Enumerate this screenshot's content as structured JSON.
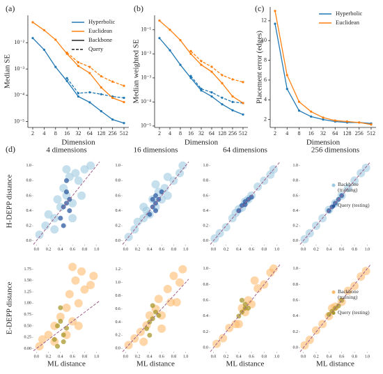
{
  "chart_data": [
    {
      "type": "line",
      "label": "(a)",
      "xlabel": "Dimension",
      "ylabel": "Median SE",
      "categories": [
        "2",
        "4",
        "8",
        "16",
        "32",
        "64",
        "128",
        "256",
        "512"
      ],
      "ylog": true,
      "ylim": [
        6e-06,
        0.11
      ],
      "yticks": [
        {
          "value": 1e-05,
          "label": "10⁻⁵"
        },
        {
          "value": 0.0001,
          "label": "10⁻⁴"
        },
        {
          "value": 0.001,
          "label": "10⁻³"
        },
        {
          "value": 0.01,
          "label": "10⁻²"
        }
      ],
      "legend": "upper right",
      "series": [
        {
          "name": "Hyperbolic",
          "color": "#1f77b4",
          "values": [
            0.015,
            0.0054,
            0.0012,
            0.00035,
            9e-05,
            5.4e-05,
            2.5e-05,
            1.2e-05,
            8.8e-06
          ],
          "query_values": [
            null,
            null,
            null,
            0.00045,
            0.00012,
            0.00013,
            0.00011,
            9e-05,
            8e-05
          ]
        },
        {
          "name": "Euclidean",
          "color": "#ff7f0e",
          "values": [
            0.06,
            0.03,
            0.013,
            0.0038,
            0.0013,
            0.0007,
            0.0002,
            8e-05,
            5.5e-05
          ],
          "query_values": [
            null,
            null,
            null,
            0.0042,
            0.0018,
            0.0012,
            0.00053,
            0.00033,
            0.00023
          ]
        }
      ],
      "line_styles": [
        {
          "name": "Backbone",
          "dashed": false
        },
        {
          "name": "Query",
          "dashed": true
        }
      ]
    },
    {
      "type": "line",
      "label": "(b)",
      "xlabel": "Dimension",
      "ylabel": "Median weighted SE",
      "categories": [
        "2",
        "4",
        "8",
        "16",
        "32",
        "64",
        "128",
        "256",
        "512"
      ],
      "ylog": true,
      "ylim": [
        8.7e-06,
        0.4
      ],
      "yticks": [
        {
          "value": 1e-05,
          "label": "10⁻⁵"
        },
        {
          "value": 0.0001,
          "label": "10⁻⁴"
        },
        {
          "value": 0.001,
          "label": "10⁻³"
        },
        {
          "value": 0.01,
          "label": "10⁻²"
        },
        {
          "value": 0.1,
          "label": "10⁻¹"
        }
      ],
      "series": [
        {
          "color": "#1f77b4",
          "values": [
            0.045,
            0.014,
            0.0035,
            0.001,
            0.0003,
            0.00017,
            8e-05,
            4.5e-05,
            3e-05
          ],
          "query_values": [
            null,
            null,
            null,
            0.0012,
            0.00035,
            0.00025,
            0.00015,
            0.0001,
            9e-05
          ]
        },
        {
          "color": "#ff7f0e",
          "values": [
            0.24,
            0.1,
            0.037,
            0.01,
            0.0035,
            0.0018,
            0.0006,
            0.00017,
            9e-05
          ],
          "query_values": [
            null,
            null,
            null,
            0.013,
            0.005,
            0.0029,
            0.0013,
            0.00087,
            0.00067
          ]
        }
      ]
    },
    {
      "type": "line",
      "label": "(c)",
      "xlabel": "Dimension",
      "ylabel": "Placement error (edges)",
      "categories": [
        "2",
        "4",
        "8",
        "16",
        "32",
        "64",
        "128",
        "256",
        "512"
      ],
      "ylog": false,
      "ylim": [
        1.2,
        13.4
      ],
      "yticks": [
        2,
        4,
        6,
        8,
        10,
        12
      ],
      "legend": "upper right",
      "series": [
        {
          "name": "Hyperbolic",
          "color": "#1f77b4",
          "values": [
            11.7,
            5.1,
            2.9,
            2.3,
            2.0,
            1.8,
            1.7,
            1.7,
            1.6
          ]
        },
        {
          "name": "Euclidean",
          "color": "#ff7f0e",
          "values": [
            13,
            6.5,
            3.8,
            2.8,
            2.2,
            1.9,
            1.8,
            1.7,
            1.5
          ]
        }
      ]
    },
    {
      "type": "scatter",
      "label": "(d)",
      "title": "4 dimensions",
      "ylabel": "H-DEPP distance",
      "xlim": [
        -0.05,
        1.05
      ],
      "ylim": [
        -0.05,
        1.1
      ],
      "xticks": [
        {
          "value": 0,
          "label": "0.0"
        },
        0.2,
        0.4,
        0.6,
        0.8,
        {
          "value": 1,
          "label": "1.0"
        }
      ],
      "yticks": [
        {
          "value": 0,
          "label": "0.0"
        },
        0.2,
        0.4,
        0.6,
        0.8,
        {
          "value": 1,
          "label": "1.0"
        }
      ],
      "series": [
        {
          "color": "#9ecae1",
          "x": [
            0.05,
            0.15,
            0.2,
            0.3,
            0.35,
            0.4,
            0.45,
            0.5,
            0.55,
            0.6,
            0.65,
            0.7,
            0.8,
            0.9,
            0.3,
            0.6,
            0.75,
            0.5
          ],
          "y": [
            0.08,
            0.2,
            0.35,
            0.3,
            0.55,
            0.45,
            0.7,
            0.6,
            0.85,
            0.5,
            0.9,
            0.8,
            0.95,
            1.0,
            0.15,
            0.3,
            0.6,
            0.95
          ]
        },
        {
          "color": "#2c5aa0",
          "x": [
            0.4,
            0.45,
            0.5,
            0.5,
            0.55,
            0.45,
            0.5,
            0.55
          ],
          "y": [
            0.3,
            0.45,
            0.5,
            0.65,
            0.55,
            0.2,
            0.8,
            0.4
          ]
        }
      ]
    },
    {
      "type": "scatter",
      "title": "16 dimensions",
      "xlim": [
        -0.05,
        1.05
      ],
      "ylim": [
        -0.05,
        1.1
      ],
      "xticks": [
        {
          "value": 0,
          "label": "0.0"
        },
        0.2,
        0.4,
        0.6,
        0.8,
        {
          "value": 1,
          "label": "1.0"
        }
      ],
      "yticks": [
        {
          "value": 0,
          "label": "0.0"
        },
        0.2,
        0.4,
        0.6,
        0.8,
        {
          "value": 1,
          "label": "1.0"
        }
      ],
      "series": [
        {
          "color": "#9ecae1",
          "x": [
            0.05,
            0.15,
            0.2,
            0.3,
            0.35,
            0.4,
            0.45,
            0.5,
            0.55,
            0.6,
            0.65,
            0.7,
            0.8,
            0.9,
            0.5,
            0.3,
            0.7,
            0.95
          ],
          "y": [
            0.05,
            0.15,
            0.25,
            0.3,
            0.4,
            0.35,
            0.55,
            0.45,
            0.65,
            0.55,
            0.7,
            0.6,
            0.8,
            0.9,
            0.75,
            0.45,
            0.85,
            1.0
          ]
        },
        {
          "color": "#2c5aa0",
          "x": [
            0.4,
            0.45,
            0.5,
            0.5,
            0.55,
            0.6,
            0.45,
            0.5
          ],
          "y": [
            0.35,
            0.45,
            0.5,
            0.6,
            0.55,
            0.65,
            0.55,
            0.4
          ]
        }
      ]
    },
    {
      "type": "scatter",
      "title": "64 dimensions",
      "xlim": [
        -0.05,
        1.05
      ],
      "ylim": [
        -0.05,
        1.1
      ],
      "xticks": [
        {
          "value": 0,
          "label": "0.0"
        },
        0.2,
        0.4,
        0.6,
        0.8,
        {
          "value": 1,
          "label": "1.0"
        }
      ],
      "yticks": [
        {
          "value": 0,
          "label": "0.0"
        },
        0.2,
        0.4,
        0.6,
        0.8,
        {
          "value": 1,
          "label": "1.0"
        }
      ],
      "series": [
        {
          "color": "#9ecae1",
          "x": [
            0.02,
            0.1,
            0.2,
            0.3,
            0.4,
            0.45,
            0.5,
            0.55,
            0.6,
            0.7,
            0.8,
            0.9,
            0.95,
            0.35
          ],
          "y": [
            0.03,
            0.1,
            0.18,
            0.3,
            0.42,
            0.44,
            0.52,
            0.55,
            0.6,
            0.72,
            0.8,
            0.88,
            0.95,
            0.37
          ]
        },
        {
          "color": "#2c5aa0",
          "x": [
            0.4,
            0.45,
            0.5,
            0.5,
            0.55,
            0.6
          ],
          "y": [
            0.4,
            0.47,
            0.48,
            0.52,
            0.55,
            0.58
          ]
        }
      ]
    },
    {
      "type": "scatter",
      "title": "256 dimensions",
      "legend": "center right",
      "xlim": [
        -0.05,
        1.05
      ],
      "ylim": [
        -0.05,
        1.1
      ],
      "xticks": [
        {
          "value": 0,
          "label": "0.0"
        },
        0.2,
        0.4,
        0.6,
        0.8,
        {
          "value": 1,
          "label": "1.0"
        }
      ],
      "yticks": [
        {
          "value": 0,
          "label": "0.0"
        },
        0.2,
        0.4,
        0.6,
        0.8,
        {
          "value": 1,
          "label": "1.0"
        }
      ],
      "series": [
        {
          "name": "Backbone (training)",
          "color": "#9ecae1",
          "x": [
            0.02,
            0.1,
            0.2,
            0.3,
            0.4,
            0.5,
            0.6,
            0.7,
            0.8,
            0.9,
            0.98
          ],
          "y": [
            0.02,
            0.1,
            0.2,
            0.3,
            0.41,
            0.5,
            0.6,
            0.7,
            0.8,
            0.9,
            0.97
          ]
        },
        {
          "name": "Query (testing)",
          "color": "#2c5aa0",
          "x": [
            0.4,
            0.45,
            0.5,
            0.55,
            0.6
          ],
          "y": [
            0.4,
            0.45,
            0.5,
            0.55,
            0.6
          ]
        }
      ]
    },
    {
      "type": "scatter",
      "ylabel": "E-DEPP distance",
      "xlabel": "ML distance",
      "xlim": [
        -0.05,
        1.05
      ],
      "ylim": [
        -0.07,
        1.85
      ],
      "xticks": [
        {
          "value": 0,
          "label": "0.0"
        },
        0.2,
        0.4,
        0.6,
        0.8,
        {
          "value": 1,
          "label": "1.0"
        }
      ],
      "yticks": [
        {
          "value": 0,
          "label": "0.00"
        },
        0.25,
        {
          "value": 0.5,
          "label": "0.50"
        },
        0.75,
        {
          "value": 1,
          "label": "1.00"
        },
        1.25,
        {
          "value": 1.5,
          "label": "1.50"
        },
        1.75
      ],
      "series": [
        {
          "color": "#fdbb6e",
          "x": [
            0.05,
            0.1,
            0.2,
            0.3,
            0.4,
            0.5,
            0.55,
            0.6,
            0.65,
            0.7,
            0.75,
            0.8,
            0.9,
            0.95,
            0.5,
            0.3,
            0.7,
            0.6
          ],
          "y": [
            0.05,
            0.2,
            0.3,
            0.5,
            0.7,
            0.9,
            1.2,
            0.6,
            1.5,
            1.0,
            1.7,
            1.3,
            1.4,
            1.6,
            0.3,
            0.15,
            0.5,
            1.8
          ]
        },
        {
          "color": "#a8972a",
          "x": [
            0.3,
            0.35,
            0.4,
            0.45,
            0.5,
            0.4,
            0.45,
            0.35
          ],
          "y": [
            0.2,
            0.5,
            0.6,
            0.3,
            0.45,
            0.9,
            0.15,
            0.05
          ]
        }
      ]
    },
    {
      "type": "scatter",
      "xlabel": "ML distance",
      "xlim": [
        -0.05,
        1.05
      ],
      "ylim": [
        -0.05,
        1.27
      ],
      "xticks": [
        {
          "value": 0,
          "label": "0.0"
        },
        0.2,
        0.4,
        0.6,
        0.8,
        {
          "value": 1,
          "label": "1.0"
        }
      ],
      "yticks": [
        {
          "value": 0,
          "label": "0.0"
        },
        0.2,
        0.4,
        0.6,
        0.8,
        {
          "value": 1,
          "label": "1.0"
        },
        1.2
      ],
      "series": [
        {
          "color": "#fdbb6e",
          "x": [
            0.05,
            0.15,
            0.25,
            0.35,
            0.4,
            0.5,
            0.55,
            0.6,
            0.7,
            0.75,
            0.8,
            0.9,
            0.95,
            0.3,
            0.6,
            0.85
          ],
          "y": [
            0.05,
            0.15,
            0.25,
            0.35,
            0.5,
            0.6,
            0.75,
            0.5,
            0.9,
            0.7,
            1.1,
            1.0,
            1.2,
            0.1,
            0.3,
            0.7
          ]
        },
        {
          "color": "#a8972a",
          "x": [
            0.35,
            0.4,
            0.45,
            0.5,
            0.55,
            0.45,
            0.4
          ],
          "y": [
            0.3,
            0.4,
            0.45,
            0.55,
            0.5,
            0.65,
            0.2
          ]
        }
      ]
    },
    {
      "type": "scatter",
      "xlabel": "ML distance",
      "xlim": [
        -0.05,
        1.05
      ],
      "ylim": [
        -0.05,
        1.05
      ],
      "xticks": [
        {
          "value": 0,
          "label": "0.0"
        },
        0.2,
        0.4,
        0.6,
        0.8,
        {
          "value": 1,
          "label": "1.0"
        }
      ],
      "yticks": [
        {
          "value": 0,
          "label": "0.0"
        },
        0.2,
        0.4,
        0.6,
        0.8,
        {
          "value": 1,
          "label": "1.0"
        }
      ],
      "series": [
        {
          "color": "#fdbb6e",
          "x": [
            0.05,
            0.15,
            0.25,
            0.35,
            0.45,
            0.5,
            0.55,
            0.6,
            0.7,
            0.8,
            0.9,
            0.95,
            0.4,
            0.65
          ],
          "y": [
            0.05,
            0.12,
            0.25,
            0.3,
            0.5,
            0.45,
            0.6,
            0.55,
            0.75,
            0.8,
            0.95,
            1.0,
            0.3,
            0.85
          ]
        },
        {
          "color": "#a8972a",
          "x": [
            0.4,
            0.45,
            0.5,
            0.5,
            0.55,
            0.45
          ],
          "y": [
            0.4,
            0.45,
            0.5,
            0.55,
            0.5,
            0.6
          ]
        }
      ]
    },
    {
      "type": "scatter",
      "xlabel": "ML distance",
      "legend": "center right",
      "xlim": [
        -0.05,
        1.05
      ],
      "ylim": [
        -0.05,
        1.05
      ],
      "xticks": [
        {
          "value": 0,
          "label": "0.0"
        },
        0.2,
        0.4,
        0.6,
        0.8,
        {
          "value": 1,
          "label": "1.0"
        }
      ],
      "yticks": [
        {
          "value": 0,
          "label": "0.0"
        },
        0.2,
        0.4,
        0.6,
        0.8,
        {
          "value": 1,
          "label": "1.0"
        }
      ],
      "series": [
        {
          "name": "Backbone (training)",
          "color": "#fdbb6e",
          "x": [
            0.02,
            0.1,
            0.2,
            0.3,
            0.4,
            0.5,
            0.6,
            0.7,
            0.8,
            0.9,
            0.98,
            0.45
          ],
          "y": [
            0.03,
            0.1,
            0.22,
            0.3,
            0.4,
            0.52,
            0.58,
            0.72,
            0.78,
            0.9,
            0.97,
            0.5
          ]
        },
        {
          "name": "Query (testing)",
          "color": "#a8972a",
          "x": [
            0.4,
            0.45,
            0.5,
            0.55,
            0.6
          ],
          "y": [
            0.42,
            0.46,
            0.5,
            0.53,
            0.6
          ]
        }
      ]
    }
  ]
}
